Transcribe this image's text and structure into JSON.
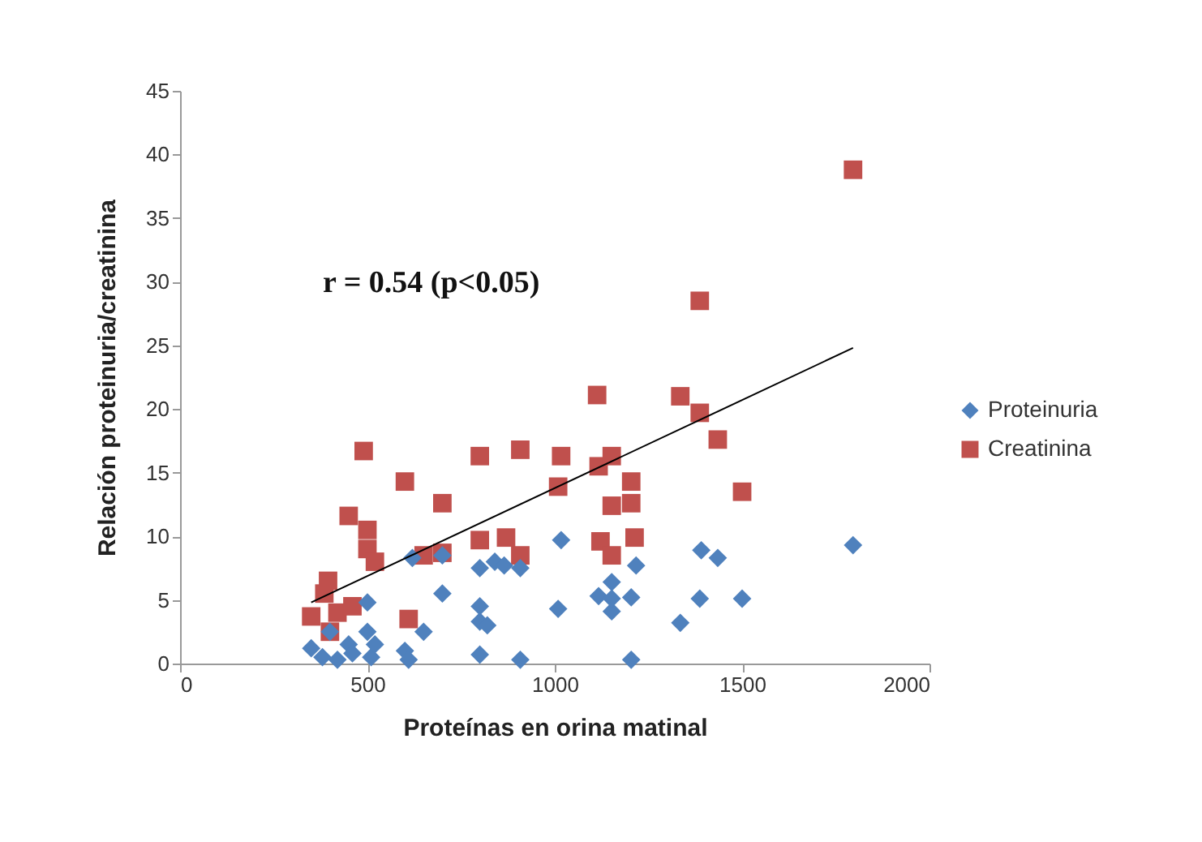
{
  "chart_data": {
    "type": "scatter",
    "xlabel": "Proteínas en orina matinal",
    "ylabel": "Relación proteinuria/creatinina",
    "annotations": [
      "r = 0.54 (p<0.05)"
    ],
    "xlim": [
      0,
      2000
    ],
    "ylim": [
      0,
      45
    ],
    "xticks": [
      0,
      500,
      1000,
      1500,
      2000
    ],
    "yticks": [
      0,
      5,
      10,
      15,
      20,
      25,
      30,
      35,
      40,
      45
    ],
    "grid": false,
    "legend": "right",
    "series": [
      {
        "name": "Proteinuria",
        "color": "#4f81bd",
        "marker": "diamond",
        "x": [
          350,
          380,
          400,
          420,
          450,
          460,
          500,
          500,
          510,
          520,
          600,
          610,
          620,
          650,
          700,
          700,
          800,
          800,
          800,
          820,
          800,
          840,
          865,
          908,
          908,
          1009,
          1017,
          1117,
          1152,
          1152,
          1152,
          1204,
          1204,
          1217,
          1335,
          1387,
          1391,
          1435,
          1500,
          1796
        ],
        "values": [
          1.2,
          0.5,
          2.5,
          0.3,
          1.5,
          0.8,
          2.5,
          4.8,
          0.5,
          1.5,
          1.0,
          0.3,
          8.3,
          2.5,
          5.5,
          8.5,
          7.5,
          4.5,
          3.3,
          3.0,
          0.7,
          8.0,
          7.7,
          7.5,
          0.3,
          4.3,
          9.7,
          5.3,
          6.4,
          4.1,
          5.1,
          5.2,
          0.3,
          7.7,
          3.2,
          5.1,
          8.9,
          8.3,
          5.1,
          9.3
        ]
      },
      {
        "name": "Creatinina",
        "color": "#c0504d",
        "marker": "square",
        "x": [
          350,
          385,
          395,
          400,
          420,
          450,
          460,
          490,
          500,
          500,
          520,
          600,
          610,
          650,
          700,
          700,
          800,
          800,
          870,
          908,
          908,
          1009,
          1017,
          1113,
          1117,
          1122,
          1152,
          1152,
          1152,
          1204,
          1204,
          1213,
          1335,
          1387,
          1387,
          1435,
          1500,
          1796
        ],
        "values": [
          3.7,
          5.5,
          6.5,
          2.5,
          4.0,
          11.6,
          4.5,
          16.7,
          10.5,
          9.0,
          8.0,
          14.3,
          3.5,
          8.5,
          12.6,
          8.7,
          16.3,
          9.7,
          9.9,
          16.8,
          8.5,
          13.9,
          16.3,
          21.1,
          15.5,
          9.6,
          16.3,
          12.4,
          8.5,
          14.3,
          12.6,
          9.9,
          21.0,
          28.5,
          19.7,
          17.6,
          13.5,
          38.8
        ]
      },
      {
        "type": "line",
        "color": "#000000",
        "x": [
          350,
          1796
        ],
        "values": [
          4.8,
          24.8
        ]
      }
    ]
  }
}
